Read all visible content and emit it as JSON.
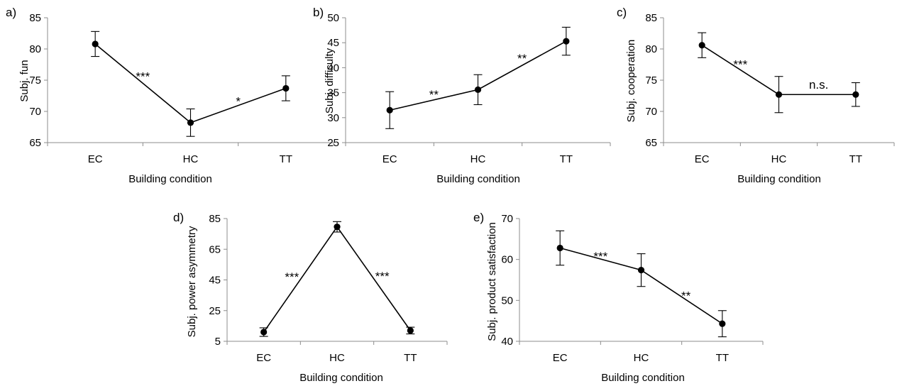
{
  "chart_data": [
    {
      "panel_label": "a)",
      "type": "line",
      "categories": [
        "EC",
        "HC",
        "TT"
      ],
      "values": [
        80.8,
        68.2,
        73.7
      ],
      "errors": [
        2.0,
        2.2,
        2.0
      ],
      "ylabel": "Subj. fun",
      "xlabel": "Building condition",
      "ylim": [
        65,
        85
      ],
      "yticks": [
        "65",
        "70",
        "75",
        "80",
        "85"
      ],
      "annotations": [
        {
          "text": "***",
          "between": [
            0,
            1
          ]
        },
        {
          "text": "*",
          "between": [
            1,
            2
          ]
        }
      ]
    },
    {
      "panel_label": "b)",
      "type": "line",
      "categories": [
        "EC",
        "HC",
        "TT"
      ],
      "values": [
        31.5,
        35.6,
        45.3
      ],
      "errors": [
        3.7,
        3.0,
        2.8
      ],
      "ylabel": "Subj. difficulty",
      "xlabel": "Building condition",
      "ylim": [
        25,
        50
      ],
      "yticks": [
        "25",
        "30",
        "35",
        "40",
        "45",
        "50"
      ],
      "annotations": [
        {
          "text": "**",
          "between": [
            0,
            1
          ]
        },
        {
          "text": "**",
          "between": [
            1,
            2
          ]
        }
      ]
    },
    {
      "panel_label": "c)",
      "type": "line",
      "categories": [
        "EC",
        "HC",
        "TT"
      ],
      "values": [
        80.6,
        72.7,
        72.7
      ],
      "errors": [
        2.0,
        2.9,
        1.9
      ],
      "ylabel": "Subj. cooperation",
      "xlabel": "Building condition",
      "ylim": [
        65,
        85
      ],
      "yticks": [
        "65",
        "70",
        "75",
        "80",
        "85"
      ],
      "annotations": [
        {
          "text": "***",
          "between": [
            0,
            1
          ]
        },
        {
          "text": "n.s.",
          "between": [
            1,
            2
          ]
        }
      ]
    },
    {
      "panel_label": "d)",
      "type": "line",
      "categories": [
        "EC",
        "HC",
        "TT"
      ],
      "values": [
        11.0,
        79.6,
        12.0
      ],
      "errors": [
        2.8,
        3.4,
        2.2
      ],
      "ylabel": "Subj. power asymmetry",
      "xlabel": "Building condition",
      "ylim": [
        5,
        85
      ],
      "yticks": [
        "5",
        "25",
        "45",
        "65",
        "85"
      ],
      "annotations": [
        {
          "text": "***",
          "between": [
            0,
            1
          ]
        },
        {
          "text": "***",
          "between": [
            1,
            2
          ]
        }
      ]
    },
    {
      "panel_label": "e)",
      "type": "line",
      "categories": [
        "EC",
        "HC",
        "TT"
      ],
      "values": [
        62.8,
        57.4,
        44.3
      ],
      "errors": [
        4.2,
        4.0,
        3.2
      ],
      "ylabel": "Subj. product satisfaction",
      "xlabel": "Building condition",
      "ylim": [
        40,
        70
      ],
      "yticks": [
        "40",
        "50",
        "60",
        "70"
      ],
      "annotations": [
        {
          "text": "***",
          "between": [
            0,
            1
          ]
        },
        {
          "text": "**",
          "between": [
            1,
            2
          ]
        }
      ]
    }
  ]
}
